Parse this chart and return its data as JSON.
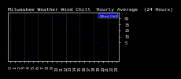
{
  "title": "Milwaukee Weather Wind Chill  Hourly Average  (24 Hours)",
  "hours": [
    0,
    1,
    2,
    3,
    4,
    5,
    6,
    7,
    8,
    9,
    10,
    11,
    12,
    13,
    14,
    15,
    16,
    17,
    18,
    19,
    20,
    21,
    22,
    23
  ],
  "wind_chill": [
    -5,
    -8,
    -10,
    -12,
    -14,
    -13,
    -10,
    5,
    18,
    28,
    38,
    45,
    42,
    35,
    28,
    22,
    18,
    14,
    10,
    5,
    -2,
    -8,
    -15,
    -20
  ],
  "dot_color": "#0000FF",
  "bg_color": "#000000",
  "plot_bg": "#000000",
  "text_color": "#ffffff",
  "grid_color": "#555555",
  "ylim": [
    -25,
    55
  ],
  "yticks": [
    5,
    15,
    25,
    35,
    45
  ],
  "ytick_labels": [
    "5",
    "15",
    "25",
    "35",
    "45"
  ],
  "legend_bg": "#0000cc",
  "legend_label": "Wind Chill",
  "title_fontsize": 4.5,
  "tick_fontsize": 3.5,
  "grid_hours": [
    0,
    3,
    6,
    9,
    12,
    15,
    18,
    21
  ]
}
